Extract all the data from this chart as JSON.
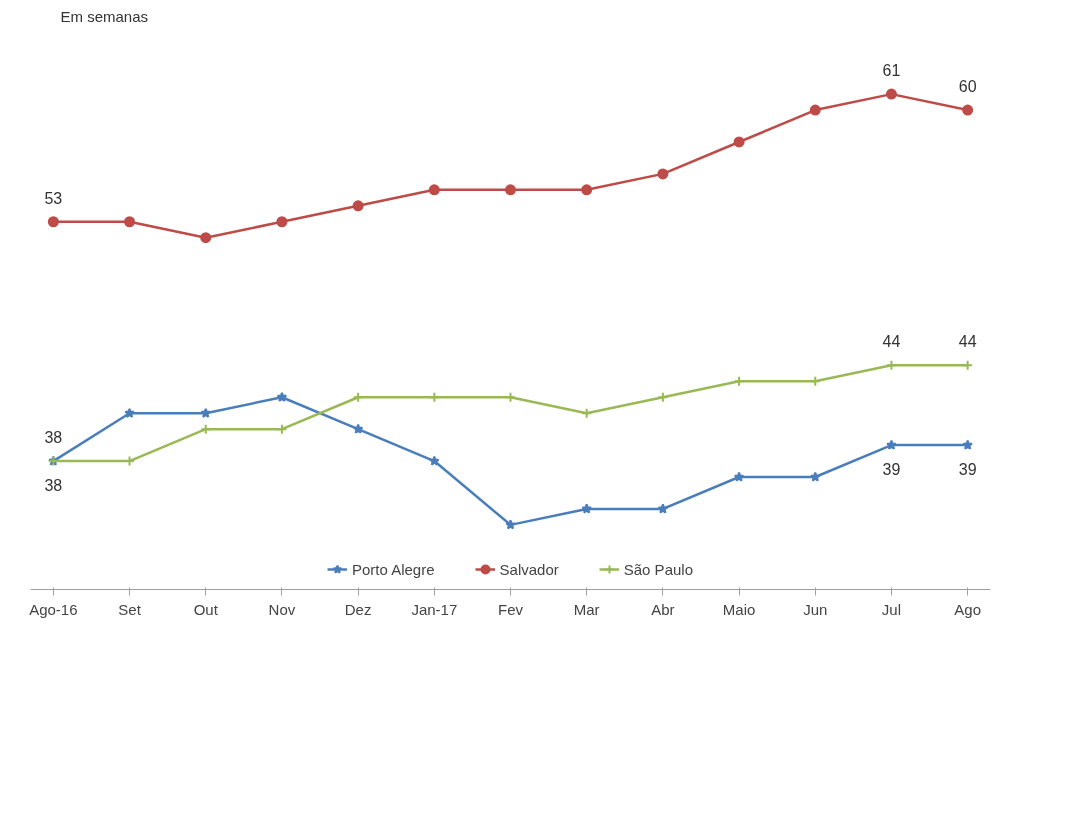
{
  "chart_data": {
    "type": "line",
    "categories": [
      "Ago-16",
      "Set",
      "Out",
      "Nov",
      "Dez",
      "Jan-17",
      "Fev",
      "Mar",
      "Abr",
      "Maio",
      "Jun",
      "Jul",
      "Ago"
    ],
    "tick_labels": "x",
    "grid": false,
    "legend": "bottom",
    "annotations": [
      "Em semanas"
    ],
    "series": [
      {
        "name": "Porto Alegre",
        "color": "#4a7ebb",
        "marker": "star",
        "values": [
          38,
          41,
          41,
          42,
          40,
          38,
          34,
          35,
          35,
          37,
          37,
          39,
          39
        ],
        "value_labels": [
          "38",
          null,
          null,
          null,
          null,
          null,
          null,
          null,
          null,
          null,
          null,
          "39",
          "39"
        ]
      },
      {
        "name": "Salvador",
        "color": "#be4b48",
        "marker": "circle",
        "values": [
          53,
          53,
          52,
          53,
          54,
          55,
          55,
          55,
          56,
          58,
          60,
          61,
          60
        ],
        "value_labels": [
          "53",
          null,
          null,
          null,
          null,
          null,
          null,
          null,
          null,
          null,
          null,
          "61",
          "60"
        ]
      },
      {
        "name": "São Paulo",
        "color": "#98b954",
        "marker": "cross",
        "values": [
          38,
          38,
          40,
          40,
          42,
          42,
          42,
          41,
          42,
          43,
          43,
          44,
          44
        ],
        "value_labels": [
          "38",
          null,
          null,
          null,
          null,
          null,
          null,
          null,
          null,
          null,
          null,
          "44",
          "44"
        ]
      }
    ]
  }
}
